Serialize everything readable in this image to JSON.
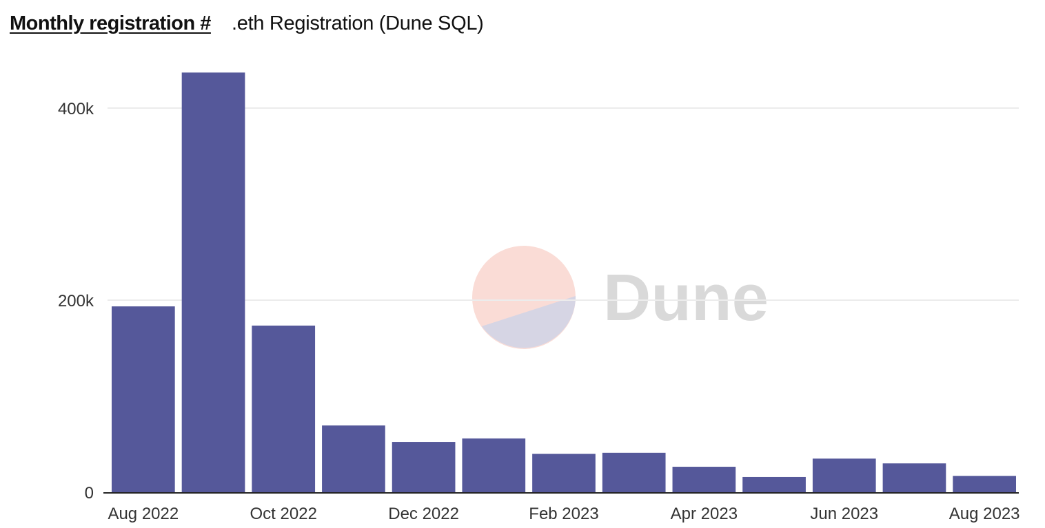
{
  "header": {
    "chart_title": "Monthly registration #",
    "query_title": ".eth Registration (Dune SQL)"
  },
  "watermark": "Dune",
  "colors": {
    "bar": "#55589a",
    "grid": "#ececec",
    "axis": "#222222"
  },
  "chart_data": {
    "type": "bar",
    "title": "Monthly registration #",
    "categories": [
      "Aug 2022",
      "Sep 2022",
      "Oct 2022",
      "Nov 2022",
      "Dec 2022",
      "Jan 2023",
      "Feb 2023",
      "Mar 2023",
      "Apr 2023",
      "May 2023",
      "Jun 2023",
      "Jul 2023",
      "Aug 2023"
    ],
    "values": [
      193500,
      437000,
      173500,
      69500,
      52300,
      56000,
      40000,
      41000,
      26500,
      15800,
      35000,
      30000,
      17000
    ],
    "ylim": [
      0,
      440000
    ],
    "yticks": [
      {
        "value": 0,
        "label": "0"
      },
      {
        "value": 200000,
        "label": "200k"
      },
      {
        "value": 400000,
        "label": "400k"
      }
    ],
    "xtick_labels": [
      "Aug 2022",
      "Oct 2022",
      "Dec 2022",
      "Feb 2023",
      "Apr 2023",
      "Jun 2023",
      "Aug 2023"
    ],
    "xlabel": "",
    "ylabel": "",
    "grid": true,
    "legend": "none"
  }
}
